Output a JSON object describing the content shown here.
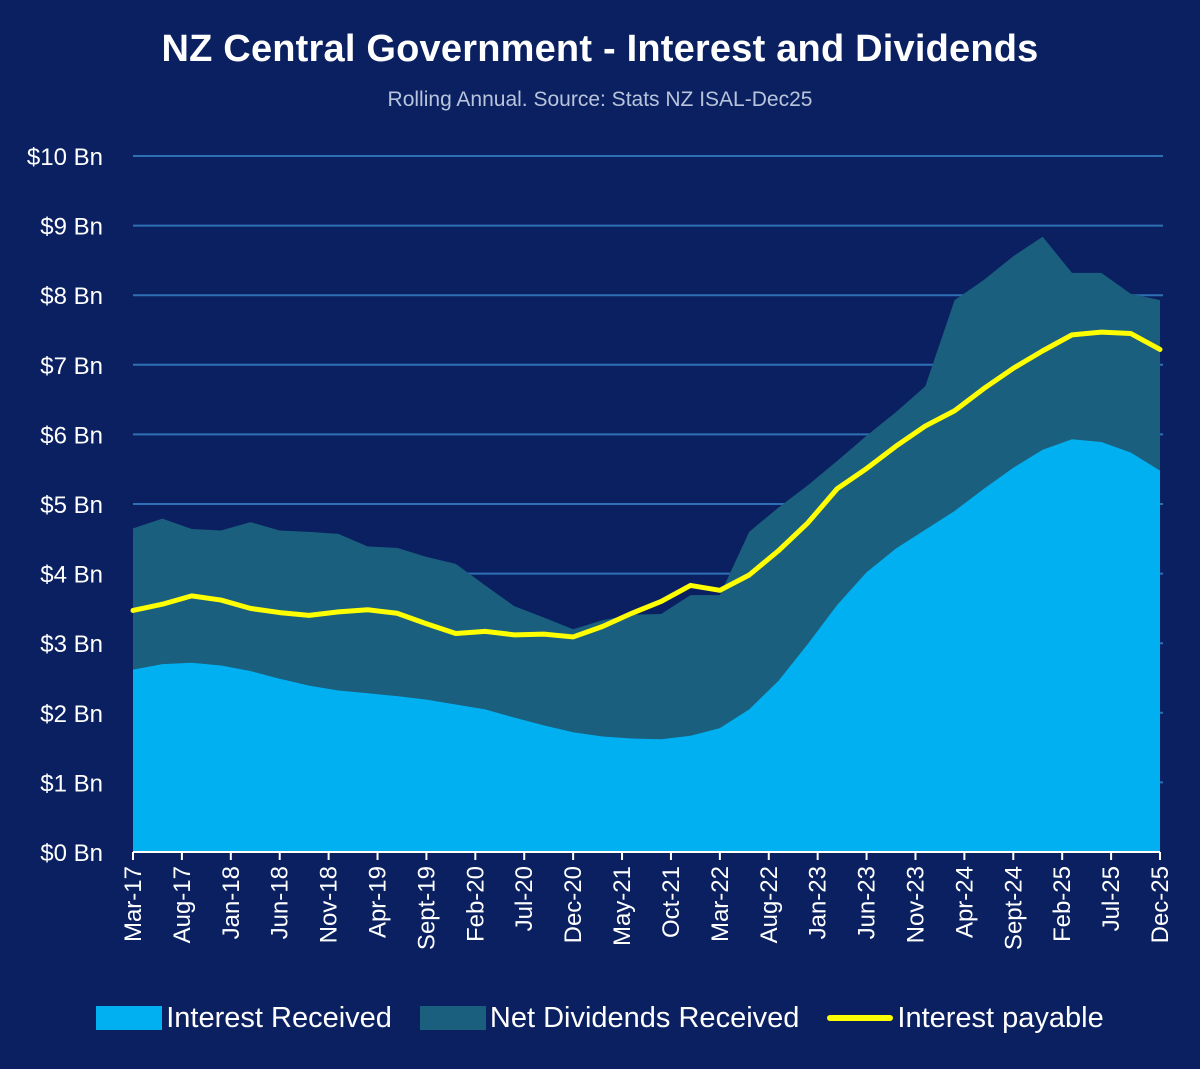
{
  "title": "NZ Central Government  - Interest and Dividends",
  "subtitle": "Rolling Annual. Source: Stats NZ ISAL-Dec25",
  "colors": {
    "background": "#0a2060",
    "interest_received": "#00b0f0",
    "net_dividends": "#1b5f7f",
    "interest_payable": "#ffff00",
    "gridline": "#2f6fb3"
  },
  "legend": {
    "interest_received": "Interest Received",
    "net_dividends": "Net Dividends Received",
    "interest_payable": "Interest payable"
  },
  "chart_data": {
    "type": "area",
    "title": "NZ Central Government  - Interest and Dividends",
    "subtitle": "Rolling Annual. Source: Stats NZ ISAL-Dec25",
    "legend_position": "bottom",
    "grid": true,
    "ylim": [
      0,
      10
    ],
    "y_ticks": [
      "$0 Bn",
      "$1 Bn",
      "$2 Bn",
      "$3 Bn",
      "$4 Bn",
      "$5 Bn",
      "$6 Bn",
      "$7 Bn",
      "$8 Bn",
      "$9 Bn",
      "$10 Bn"
    ],
    "x_tick_labels": [
      "Mar-17",
      "Aug-17",
      "Jan-18",
      "Jun-18",
      "Nov-18",
      "Apr-19",
      "Sept-19",
      "Feb-20",
      "Jul-20",
      "Dec-20",
      "May-21",
      "Oct-21",
      "Mar-22",
      "Aug-22",
      "Jan-23",
      "Jun-23",
      "Nov-23",
      "Apr-24",
      "Sept-24",
      "Feb-25",
      "Jul-25",
      "Dec-25"
    ],
    "x": [
      "Mar-17",
      "Jun-17",
      "Sep-17",
      "Dec-17",
      "Mar-18",
      "Jun-18",
      "Sep-18",
      "Dec-18",
      "Mar-19",
      "Jun-19",
      "Sep-19",
      "Dec-19",
      "Mar-20",
      "Jun-20",
      "Sep-20",
      "Dec-20",
      "Mar-21",
      "Jun-21",
      "Sep-21",
      "Dec-21",
      "Mar-22",
      "Jun-22",
      "Sep-22",
      "Dec-22",
      "Mar-23",
      "Jun-23",
      "Sep-23",
      "Dec-23",
      "Mar-24",
      "Jun-24",
      "Sep-24",
      "Dec-24",
      "Mar-25",
      "Jun-25",
      "Sep-25",
      "Dec-25"
    ],
    "series": [
      {
        "name": "Interest Received",
        "kind": "area",
        "values": [
          2.62,
          2.7,
          2.72,
          2.68,
          2.6,
          2.49,
          2.39,
          2.32,
          2.28,
          2.24,
          2.19,
          2.12,
          2.05,
          1.93,
          1.82,
          1.72,
          1.66,
          1.63,
          1.62,
          1.67,
          1.78,
          2.05,
          2.46,
          2.99,
          3.55,
          4.02,
          4.36,
          4.63,
          4.9,
          5.22,
          5.52,
          5.78,
          5.93,
          5.89,
          5.74,
          5.48
        ]
      },
      {
        "name": "Net Dividends Received",
        "kind": "stacked_area_total",
        "values": [
          4.65,
          4.79,
          4.64,
          4.62,
          4.74,
          4.62,
          4.6,
          4.57,
          4.39,
          4.37,
          4.24,
          4.14,
          3.83,
          3.53,
          3.37,
          3.2,
          3.33,
          3.41,
          3.42,
          3.69,
          3.69,
          4.6,
          4.95,
          5.27,
          5.62,
          5.98,
          6.32,
          6.69,
          7.93,
          8.22,
          8.56,
          8.84,
          8.32,
          8.32,
          8.02,
          7.93
        ]
      },
      {
        "name": "Interest payable",
        "kind": "line",
        "values": [
          3.47,
          3.56,
          3.68,
          3.62,
          3.5,
          3.44,
          3.4,
          3.45,
          3.48,
          3.43,
          3.28,
          3.14,
          3.17,
          3.12,
          3.13,
          3.09,
          3.24,
          3.43,
          3.6,
          3.83,
          3.76,
          3.98,
          4.33,
          4.73,
          5.22,
          5.51,
          5.83,
          6.12,
          6.34,
          6.66,
          6.95,
          7.2,
          7.43,
          7.47,
          7.45,
          7.22
        ]
      }
    ]
  }
}
